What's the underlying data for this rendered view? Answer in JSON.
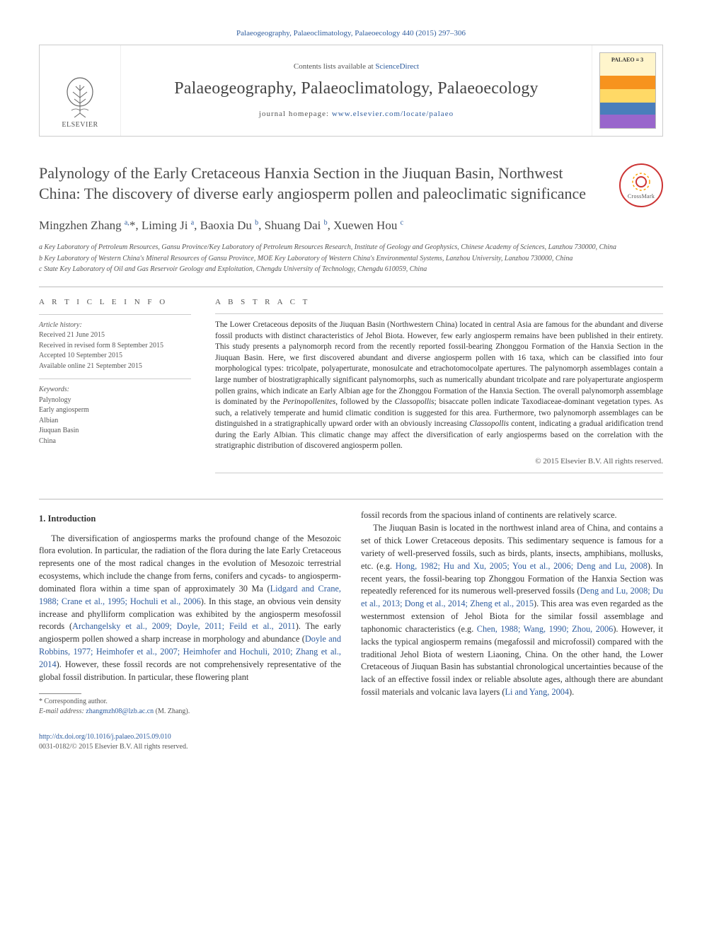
{
  "header": {
    "citation": "Palaeogeography, Palaeoclimatology, Palaeoecology 440 (2015) 297–306",
    "contents_prefix": "Contents lists available at ",
    "contents_link": "ScienceDirect",
    "journal_title": "Palaeogeography, Palaeoclimatology, Palaeoecology",
    "homepage_prefix": "journal homepage: ",
    "homepage_link": "www.elsevier.com/locate/palaeo",
    "elsevier_label": "ELSEVIER",
    "crossmark_label": "CrossMark"
  },
  "article": {
    "title": "Palynology of the Early Cretaceous Hanxia Section in the Jiuquan Basin, Northwest China: The discovery of diverse early angiosperm pollen and paleoclimatic significance",
    "authors_html": "Mingzhen Zhang <sup>a,</sup>*, Liming Ji <sup>a</sup>, Baoxia Du <sup>b</sup>, Shuang Dai <sup>b</sup>, Xuewen Hou <sup>c</sup>",
    "affiliations": [
      "a  Key Laboratory of Petroleum Resources, Gansu Province/Key Laboratory of Petroleum Resources Research, Institute of Geology and Geophysics, Chinese Academy of Sciences, Lanzhou 730000, China",
      "b  Key Laboratory of Western China's Mineral Resources of Gansu Province, MOE Key Laboratory of Western China's Environmental Systems, Lanzhou University, Lanzhou 730000, China",
      "c  State Key Laboratory of Oil and Gas Reservoir Geology and Exploitation, Chengdu University of Technology, Chengdu 610059, China"
    ]
  },
  "meta": {
    "article_info_heading": "A R T I C L E   I N F O",
    "history_heading": "Article history:",
    "history": [
      "Received 21 June 2015",
      "Received in revised form 8 September 2015",
      "Accepted 10 September 2015",
      "Available online 21 September 2015"
    ],
    "keywords_heading": "Keywords:",
    "keywords": [
      "Palynology",
      "Early angiosperm",
      "Albian",
      "Jiuquan Basin",
      "China"
    ]
  },
  "abstract": {
    "heading": "A B S T R A C T",
    "text_html": "The Lower Cretaceous deposits of the Jiuquan Basin (Northwestern China) located in central Asia are famous for the abundant and diverse fossil products with distinct characteristics of Jehol Biota. However, few early angiosperm remains have been published in their entirety. This study presents a palynomorph record from the recently reported fossil-bearing Zhonggou Formation of the Hanxia Section in the Jiuquan Basin. Here, we first discovered abundant and diverse angiosperm pollen with 16 taxa, which can be classified into four morphological types: tricolpate, polyaperturate, monosulcate and etrachotomocolpate apertures. The palynomorph assemblages contain a large number of biostratigraphically significant palynomorphs, such as numerically abundant tricolpate and rare polyaperturate angiosperm pollen grains, which indicate an Early Albian age for the Zhonggou Formation of the Hanxia Section. The overall palynomorph assemblage is dominated by the <i>Perinopollenites</i>, followed by the <i>Classopollis</i>; bisaccate pollen indicate Taxodiaceae-dominant vegetation types. As such, a relatively temperate and humid climatic condition is suggested for this area. Furthermore, two palynomorph assemblages can be distinguished in a stratigraphically upward order with an obviously increasing <i>Classopollis</i> content, indicating a gradual aridification trend during the Early Albian. This climatic change may affect the diversification of early angiosperms based on the correlation with the stratigraphic distribution of discovered angiosperm pollen.",
    "copyright": "© 2015 Elsevier B.V. All rights reserved."
  },
  "body": {
    "section_heading": "1. Introduction",
    "p1_html": "The diversification of angiosperms marks the profound change of the Mesozoic flora evolution. In particular, the radiation of the flora during the late Early Cretaceous represents one of the most radical changes in the evolution of Mesozoic terrestrial ecosystems, which include the change from ferns, conifers and cycads- to angiosperm-dominated flora within a time span of approximately 30 Ma (<a class='ref-link'>Lidgard and Crane, 1988; Crane et al., 1995; Hochuli et al., 2006</a>). In this stage, an obvious vein density increase and phylliform complication was exhibited by the angiosperm mesofossil records (<a class='ref-link'>Archangelsky et al., 2009; Doyle, 2011; Feild et al., 2011</a>). The early angiosperm pollen showed a sharp increase in morphology and abundance (<a class='ref-link'>Doyle and Robbins, 1977; Heimhofer et al., 2007; Heimhofer and Hochuli, 2010; Zhang et al., 2014</a>). However, these fossil records are not comprehensively representative of the global fossil distribution. In particular, these flowering plant",
    "p2_html": "fossil records from the spacious inland of continents are relatively scarce.",
    "p3_html": "The Jiuquan Basin is located in the northwest inland area of China, and contains a set of thick Lower Cretaceous deposits. This sedimentary sequence is famous for a variety of well-preserved fossils, such as birds, plants, insects, amphibians, mollusks, etc. (e.g. <a class='ref-link'>Hong, 1982; Hu and Xu, 2005; You et al., 2006; Deng and Lu, 2008</a>). In recent years, the fossil-bearing top Zhonggou Formation of the Hanxia Section was repeatedly referenced for its numerous well-preserved fossils (<a class='ref-link'>Deng and Lu, 2008; Du et al., 2013; Dong et al., 2014; Zheng et al., 2015</a>). This area was even regarded as the westernmost extension of Jehol Biota for the similar fossil assemblage and taphonomic characteristics (e.g. <a class='ref-link'>Chen, 1988; Wang, 1990; Zhou, 2006</a>). However, it lacks the typical angiosperm remains (megafossil and microfossil) compared with the traditional Jehol Biota of western Liaoning, China. On the other hand, the Lower Cretaceous of Jiuquan Basin has substantial chronological uncertainties because of the lack of an effective fossil index or reliable absolute ages, although there are abundant fossil materials and volcanic lava layers (<a class='ref-link'>Li and Yang, 2004</a>)."
  },
  "footnote": {
    "corr_label": "* Corresponding author.",
    "email_label": "E-mail address:",
    "email": "zhangmzh08@lzb.ac.cn",
    "email_name": "(M. Zhang)."
  },
  "footer": {
    "doi": "http://dx.doi.org/10.1016/j.palaeo.2015.09.010",
    "issn_line": "0031-0182/© 2015 Elsevier B.V. All rights reserved."
  },
  "colors": {
    "link": "#2e5c9e",
    "text": "#333333",
    "muted": "#555555",
    "border": "#cccccc",
    "crossmark_ring": "#cc3333"
  }
}
